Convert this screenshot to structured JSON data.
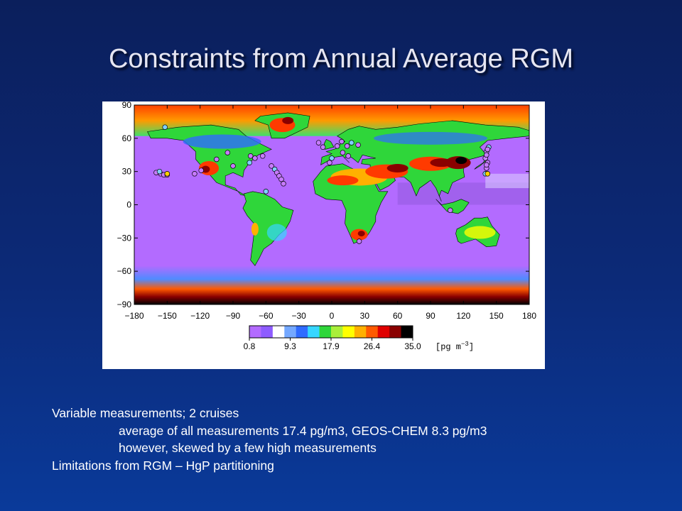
{
  "slide": {
    "title": "Constraints from Annual Average RGM",
    "bullets": [
      {
        "text": "Variable measurements; 2 cruises",
        "level": 0
      },
      {
        "text": "average of all measurements 17.4 pg/m3, GEOS-CHEM 8.3 pg/m3",
        "level": 1
      },
      {
        "text": "however, skewed by a few high measurements",
        "level": 1
      },
      {
        "text": "Limitations from RGM – HgP partitioning",
        "level": 0
      }
    ]
  },
  "map": {
    "lat_ticks": [
      "90",
      "60",
      "30",
      "0",
      "−30",
      "−60",
      "−90"
    ],
    "lon_ticks": [
      "−180",
      "−150",
      "−120",
      "−90",
      "−60",
      "−30",
      "0",
      "30",
      "60",
      "90",
      "120",
      "150",
      "180"
    ],
    "colorbar": {
      "tick_labels": [
        "0.8",
        "9.3",
        "17.9",
        "26.4",
        "35.0"
      ],
      "unit_label": "[pg m",
      "unit_exponent": "−3",
      "unit_close": "]",
      "colors": [
        "#b36bff",
        "#8e5cff",
        "#ffffff",
        "#74a8ff",
        "#2f6bff",
        "#36d6ff",
        "#2fd63a",
        "#a9ef3a",
        "#ffff00",
        "#ffb000",
        "#ff5a00",
        "#e00000",
        "#8a0000",
        "#000000"
      ]
    },
    "palette": {
      "ocean": "#b36bff",
      "ocean_deep": "#9a5ce6",
      "land": "#2fd63a",
      "hot": "#ff3a00",
      "very_hot": "#8a0000",
      "polar": "#000000"
    }
  }
}
